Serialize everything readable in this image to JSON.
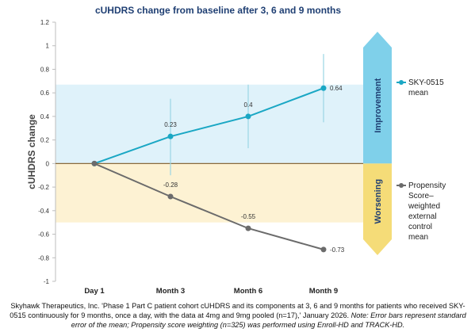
{
  "chart_data": {
    "type": "line",
    "title": "cUHDRS change from baseline after 3, 6 and 9 months",
    "ylabel": "cUHDRS change",
    "xlabel": "",
    "categories": [
      "Day 1",
      "Month 3",
      "Month 6",
      "Month 9"
    ],
    "ylim": [
      -1,
      1.2
    ],
    "yticks": [
      -1,
      -0.8,
      -0.6,
      -0.4,
      -0.2,
      0,
      0.2,
      0.4,
      0.6,
      0.8,
      1,
      1.2
    ],
    "grid": false,
    "legend_position": "right",
    "series": [
      {
        "name": "SKY-0515 mean",
        "color": "#1aa7c4",
        "values": [
          0,
          0.23,
          0.4,
          0.64
        ],
        "labels": [
          "",
          "0.23",
          "0.4",
          "0.64"
        ],
        "error_low": [
          null,
          -0.1,
          0.13,
          0.35
        ],
        "error_high": [
          null,
          0.55,
          0.67,
          0.93
        ]
      },
      {
        "name": "Propensity Score–weighted external control mean",
        "color": "#6b6b6b",
        "values": [
          0,
          -0.28,
          -0.55,
          -0.73
        ],
        "labels": [
          "",
          "-0.28",
          "-0.55",
          "-0.73"
        ]
      }
    ],
    "regions": [
      {
        "label": "Improvement",
        "range": [
          0,
          0.67
        ],
        "color": "#dff2fa",
        "arrow_color": "#7fd0ea"
      },
      {
        "label": "Worsening",
        "range": [
          -0.5,
          0
        ],
        "color": "#fdf2d3",
        "arrow_color": "#f5dc78"
      }
    ]
  },
  "caption": {
    "text": "Skyhawk Therapeutics, Inc. 'Phase 1 Part C patient cohort cUHDRS and its components at 3, 6 and 9 months for patients who received SKY-0515 continuously for 9 months, once a day, with the data at 4mg and 9mg pooled (n=17),' January 2026. ",
    "note": "Note: Error bars represent standard error of the mean; Propensity score weighting (n=325) was performed using Enroll-HD and TRACK-HD."
  }
}
